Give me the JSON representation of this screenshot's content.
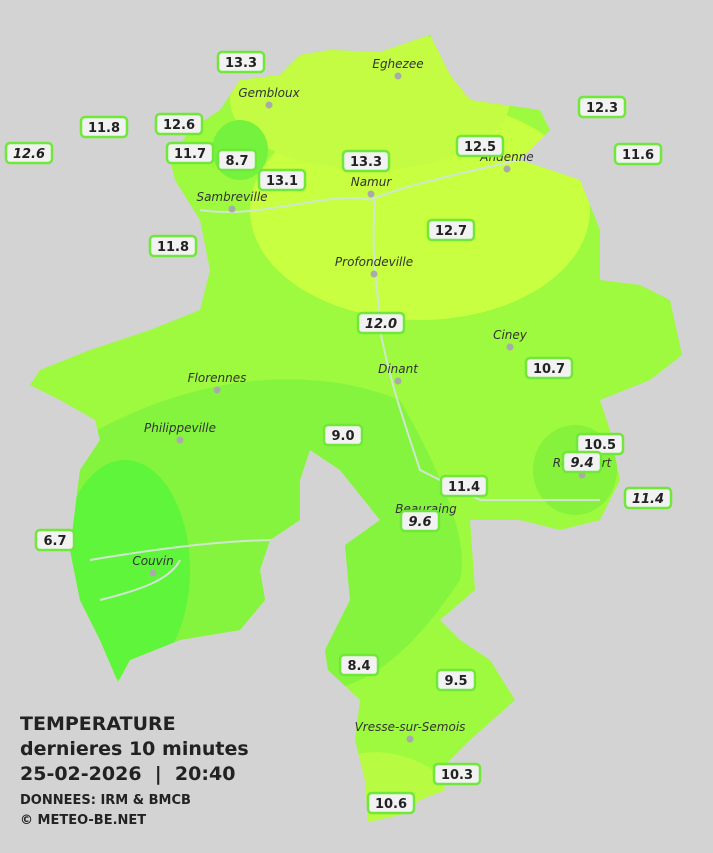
{
  "legend": {
    "title": "TEMPERATURE",
    "subtitle": "dernieres 10 minutes",
    "datetime": "25-02-2026  |  20:40",
    "source": "DONNEES: IRM & BMCB",
    "copyright": "© METEO-BE.NET"
  },
  "cities": [
    {
      "name": "Eghezee"
    },
    {
      "name": "Gembloux"
    },
    {
      "name": "Andenne"
    },
    {
      "name": "Namur"
    },
    {
      "name": "Sambreville"
    },
    {
      "name": "Profondeville"
    },
    {
      "name": "Ciney"
    },
    {
      "name": "Dinant"
    },
    {
      "name": "Florennes"
    },
    {
      "name": "Philippeville"
    },
    {
      "name": "Beauraing"
    },
    {
      "name": "Rochefort"
    },
    {
      "name": "Couvin"
    },
    {
      "name": "Vresse-sur-Semois"
    }
  ],
  "stations": [
    {
      "value": "13.3",
      "italic": false
    },
    {
      "value": "11.8",
      "italic": false
    },
    {
      "value": "12.6",
      "italic": false
    },
    {
      "value": "12.6",
      "italic": true
    },
    {
      "value": "11.7",
      "italic": false
    },
    {
      "value": "8.7",
      "italic": false
    },
    {
      "value": "13.1",
      "italic": false
    },
    {
      "value": "13.3",
      "italic": false
    },
    {
      "value": "12.5",
      "italic": false
    },
    {
      "value": "12.3",
      "italic": false
    },
    {
      "value": "11.6",
      "italic": false
    },
    {
      "value": "11.8",
      "italic": false
    },
    {
      "value": "12.7",
      "italic": false
    },
    {
      "value": "12.0",
      "italic": true
    },
    {
      "value": "10.7",
      "italic": false
    },
    {
      "value": "9.0",
      "italic": false
    },
    {
      "value": "10.5",
      "italic": false
    },
    {
      "value": "9.4",
      "italic": true
    },
    {
      "value": "11.4",
      "italic": false
    },
    {
      "value": "11.4",
      "italic": true
    },
    {
      "value": "9.6",
      "italic": true
    },
    {
      "value": "6.7",
      "italic": false
    },
    {
      "value": "8.4",
      "italic": false
    },
    {
      "value": "9.5",
      "italic": false
    },
    {
      "value": "10.3",
      "italic": false
    },
    {
      "value": "10.6",
      "italic": false
    }
  ]
}
